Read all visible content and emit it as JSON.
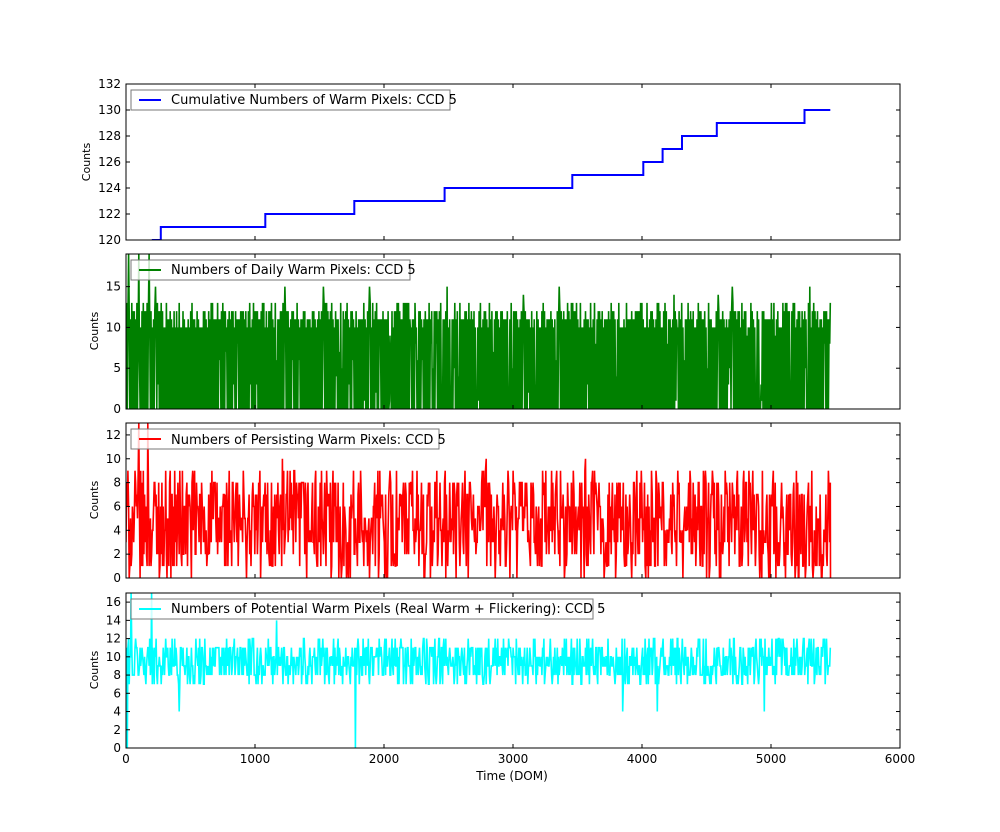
{
  "chart_data": [
    {
      "type": "line",
      "legend": "Cumulative Numbers of Warm Pixels: CCD 5",
      "legend_position": "top-left",
      "color": "#0000ff",
      "xlabel": "",
      "ylabel": "Counts",
      "xlim": [
        0,
        6000
      ],
      "ylim": [
        120,
        132
      ],
      "yticks": [
        120,
        122,
        124,
        126,
        128,
        130,
        132
      ],
      "grid": false,
      "step": true,
      "x": [
        200,
        270,
        270,
        1080,
        1080,
        1770,
        1770,
        2470,
        2470,
        3460,
        3460,
        4010,
        4010,
        4160,
        4160,
        4310,
        4310,
        4580,
        4580,
        5260,
        5260,
        5460
      ],
      "y": [
        120,
        120,
        121,
        121,
        122,
        122,
        123,
        123,
        124,
        124,
        125,
        125,
        126,
        126,
        127,
        127,
        128,
        128,
        129,
        129,
        130,
        130
      ]
    },
    {
      "type": "line",
      "legend": "Numbers of Daily Warm Pixels: CCD 5",
      "legend_position": "top-left",
      "color": "#008000",
      "xlabel": "",
      "ylabel": "Counts",
      "xlim": [
        0,
        6000
      ],
      "ylim": [
        0,
        19
      ],
      "yticks": [
        0,
        5,
        10,
        15
      ],
      "grid": false,
      "x_range": [
        0,
        5460
      ],
      "typical_low": 0,
      "typical_high": [
        10,
        13
      ],
      "peaks": [
        {
          "x": 20,
          "y": 19
        },
        {
          "x": 100,
          "y": 19
        },
        {
          "x": 180,
          "y": 19
        },
        {
          "x": 230,
          "y": 15
        },
        {
          "x": 1230,
          "y": 15
        },
        {
          "x": 1530,
          "y": 15
        },
        {
          "x": 1890,
          "y": 15
        },
        {
          "x": 2490,
          "y": 15
        },
        {
          "x": 3360,
          "y": 15
        },
        {
          "x": 4700,
          "y": 15
        },
        {
          "x": 5300,
          "y": 15
        },
        {
          "x": 3080,
          "y": 14
        },
        {
          "x": 4250,
          "y": 14
        },
        {
          "x": 4590,
          "y": 14
        }
      ]
    },
    {
      "type": "line",
      "legend": "Numbers of Persisting Warm Pixels: CCD 5",
      "legend_position": "top-left",
      "color": "#ff0000",
      "xlabel": "",
      "ylabel": "Counts",
      "xlim": [
        0,
        6000
      ],
      "ylim": [
        0,
        13
      ],
      "yticks": [
        0,
        2,
        4,
        6,
        8,
        10,
        12
      ],
      "grid": false,
      "x_range": [
        0,
        5460
      ],
      "typical_range": [
        0,
        9
      ],
      "peaks": [
        {
          "x": 100,
          "y": 13
        },
        {
          "x": 170,
          "y": 13
        },
        {
          "x": 1210,
          "y": 10
        },
        {
          "x": 2790,
          "y": 10
        },
        {
          "x": 3560,
          "y": 10
        },
        {
          "x": 3000,
          "y": 9
        },
        {
          "x": 4860,
          "y": 9
        }
      ]
    },
    {
      "type": "line",
      "legend": "Numbers of Potential Warm Pixels (Real Warm + Flickering): CCD 5",
      "legend_position": "top-left",
      "color": "#00ffff",
      "xlabel": "Time (DOM)",
      "ylabel": "Counts",
      "xlim": [
        0,
        6000
      ],
      "ylim": [
        0,
        17
      ],
      "yticks": [
        0,
        2,
        4,
        6,
        8,
        10,
        12,
        14,
        16
      ],
      "xticks": [
        0,
        1000,
        2000,
        3000,
        4000,
        5000,
        6000
      ],
      "grid": false,
      "x_range": [
        0,
        5460
      ],
      "typical_range": [
        7,
        12
      ],
      "features": [
        {
          "x": 10,
          "y": 0
        },
        {
          "x": 40,
          "y": 17
        },
        {
          "x": 200,
          "y": 17
        },
        {
          "x": 1170,
          "y": 14
        },
        {
          "x": 1780,
          "y": 0
        },
        {
          "x": 410,
          "y": 4
        },
        {
          "x": 3850,
          "y": 4
        },
        {
          "x": 4120,
          "y": 4
        },
        {
          "x": 4950,
          "y": 4
        }
      ]
    }
  ]
}
